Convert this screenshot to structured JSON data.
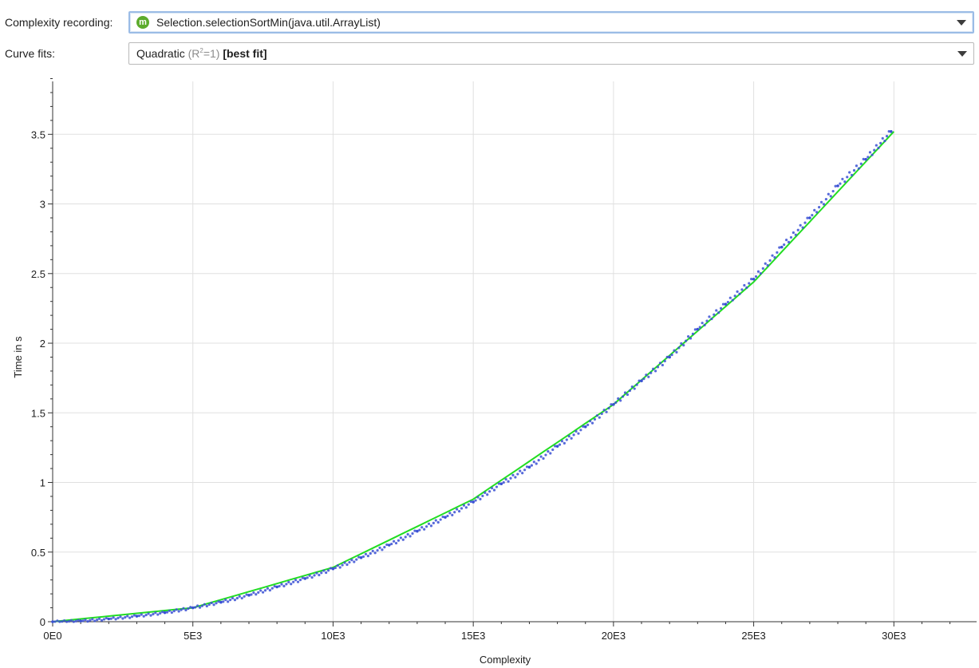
{
  "toolbar": {
    "recording_label": "Complexity recording:",
    "recording_value": "Selection.selectionSortMin(java.util.ArrayList)",
    "recording_icon": "method-icon",
    "recording_icon_letter": "m",
    "fits_label": "Curve fits:",
    "fit_name": "Quadratic",
    "fit_r2_prefix": "(R",
    "fit_r2_sup": "2",
    "fit_r2_suffix": "=1)",
    "fit_best": "[best fit]"
  },
  "colors": {
    "points": "#3a50d4",
    "fit_line": "#22dd22",
    "grid": "#e0e0e0",
    "icon": "#5cab2c"
  },
  "chart_data": {
    "type": "scatter",
    "xlabel": "Complexity",
    "ylabel": "Time in s",
    "xlim": [
      0,
      32950
    ],
    "ylim": [
      0,
      3.88
    ],
    "x_ticks": [
      0,
      5000,
      10000,
      15000,
      20000,
      25000,
      30000
    ],
    "x_tick_labels": [
      "0E0",
      "5E3",
      "10E3",
      "15E3",
      "20E3",
      "25E3",
      "30E3"
    ],
    "y_ticks": [
      0,
      0.5,
      1,
      1.5,
      2,
      2.5,
      3,
      3.5
    ],
    "y_tick_labels": [
      "0",
      "0.5",
      "1",
      "1.5",
      "2",
      "2.5",
      "3",
      "3.5"
    ],
    "grid": true,
    "series": [
      {
        "kind": "points",
        "color": "#3a50d4",
        "x": [
          0,
          1000,
          2000,
          3000,
          4000,
          5000,
          6000,
          7000,
          8000,
          9000,
          10000,
          11000,
          12000,
          13000,
          14000,
          15000,
          16000,
          17000,
          18000,
          19000,
          20000,
          21000,
          22000,
          23000,
          24000,
          25000,
          26000,
          27000,
          28000,
          29000,
          29900
        ],
        "y": [
          0.0,
          0.005,
          0.02,
          0.04,
          0.065,
          0.1,
          0.14,
          0.19,
          0.25,
          0.31,
          0.38,
          0.46,
          0.55,
          0.65,
          0.75,
          0.86,
          0.99,
          1.11,
          1.26,
          1.4,
          1.56,
          1.73,
          1.9,
          2.1,
          2.28,
          2.46,
          2.69,
          2.9,
          3.13,
          3.32,
          3.52
        ]
      },
      {
        "kind": "fit",
        "color": "#22dd22",
        "x": [
          0,
          5000,
          10000,
          15000,
          20000,
          25000,
          30000
        ],
        "y": [
          0.0,
          0.1,
          0.39,
          0.88,
          1.56,
          2.44,
          3.52
        ]
      }
    ]
  }
}
